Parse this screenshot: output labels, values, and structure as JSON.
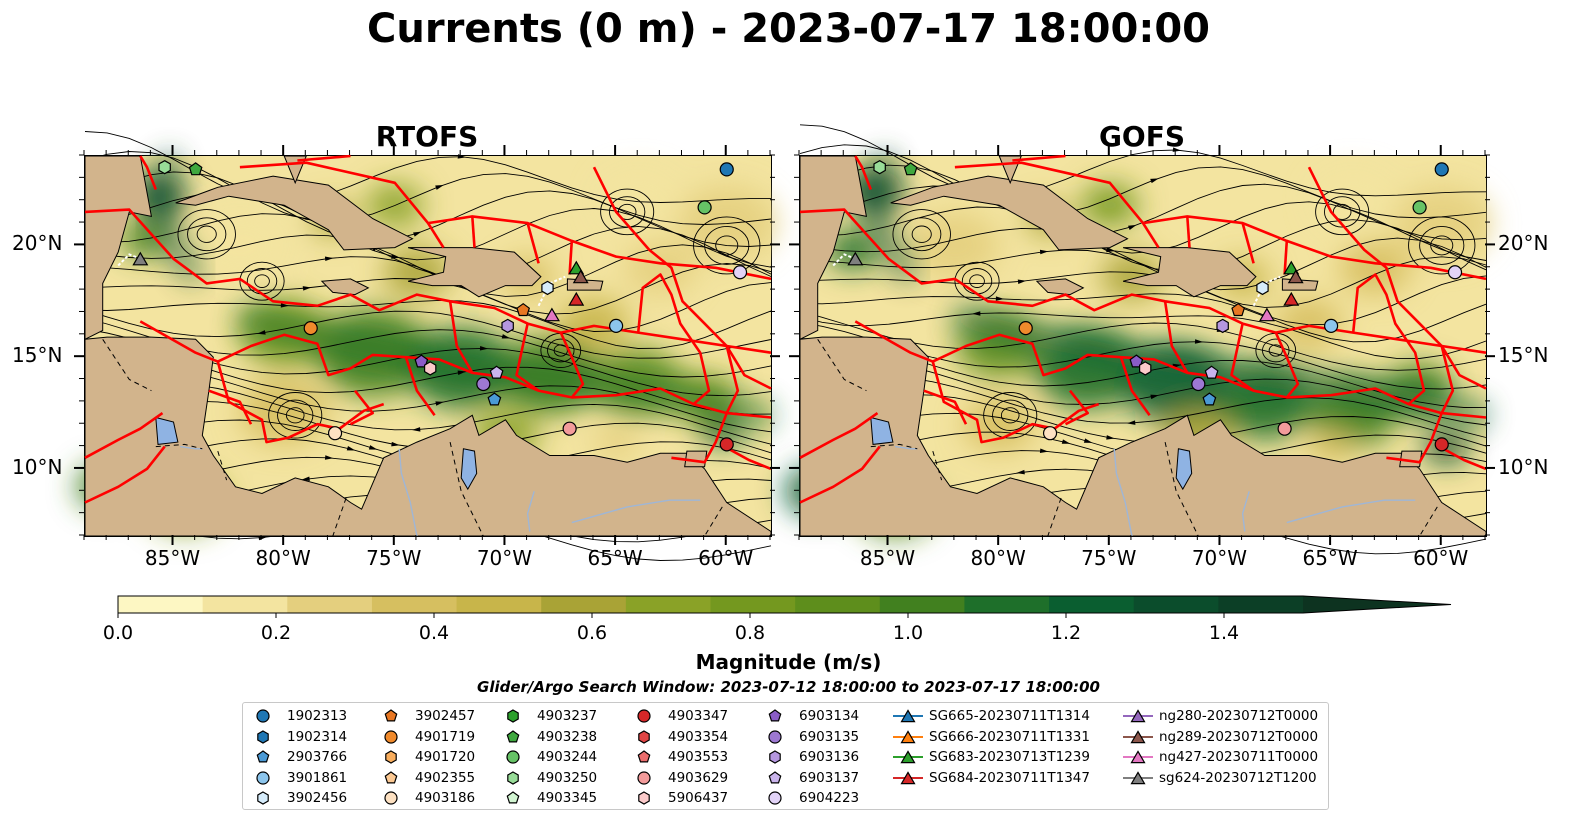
{
  "title": "Currents (0 m) - 2023-07-17 18:00:00",
  "panels": [
    {
      "title": "RTOFS"
    },
    {
      "title": "GOFS"
    }
  ],
  "axes": {
    "lon_ticks": [
      "85°W",
      "80°W",
      "75°W",
      "70°W",
      "65°W",
      "60°W"
    ],
    "lat_ticks": [
      "20°N",
      "15°N",
      "10°N"
    ],
    "lon_range": [
      -89.0,
      -58.0
    ],
    "lat_range": [
      7.0,
      24.0
    ]
  },
  "colorbar": {
    "label": "Magnitude (m/s)",
    "ticks": [
      "0.0",
      "0.2",
      "0.4",
      "0.6",
      "0.8",
      "1.0",
      "1.2",
      "1.4"
    ],
    "range": [
      0.0,
      1.5
    ],
    "extend": "max",
    "colors": [
      "#fdf7c3",
      "#f3e4a0",
      "#e4cf7e",
      "#d6bf60",
      "#c8b54a",
      "#a9a336",
      "#8aa227",
      "#74981f",
      "#5e8e1c",
      "#41801f",
      "#1e6f2a",
      "#0a5e30",
      "#0b4d2c",
      "#0c3f26",
      "#0d3320"
    ]
  },
  "search_window": "Glider/Argo Search Window: 2023-07-12 18:00:00 to 2023-07-17 18:00:00",
  "map_colors": {
    "land": "#d2b48c",
    "eez": "#ff0000",
    "lakes": "#8fb3e3",
    "rivers": "#9fb6d6"
  },
  "legend": [
    {
      "label": "1902313",
      "marker": "circle",
      "color": "#1f77b4"
    },
    {
      "label": "1902314",
      "marker": "hexagon",
      "color": "#1f77b4"
    },
    {
      "label": "2903766",
      "marker": "pentagon",
      "color": "#4a9ad6"
    },
    {
      "label": "3901861",
      "marker": "circle",
      "color": "#8cc5ec"
    },
    {
      "label": "3902456",
      "marker": "hexagon",
      "color": "#d6ecfb"
    },
    {
      "label": "3902457",
      "marker": "pentagon",
      "color": "#e87722"
    },
    {
      "label": "4901719",
      "marker": "circle",
      "color": "#f08a2c"
    },
    {
      "label": "4901720",
      "marker": "hexagon",
      "color": "#f8ad5d"
    },
    {
      "label": "4902355",
      "marker": "pentagon",
      "color": "#fcc993"
    },
    {
      "label": "4903186",
      "marker": "circle",
      "color": "#fde1c2"
    },
    {
      "label": "4903237",
      "marker": "hexagon",
      "color": "#2ca02c"
    },
    {
      "label": "4903238",
      "marker": "pentagon",
      "color": "#3fa83f"
    },
    {
      "label": "4903244",
      "marker": "circle",
      "color": "#66c266"
    },
    {
      "label": "4903250",
      "marker": "hexagon",
      "color": "#98dc98"
    },
    {
      "label": "4903345",
      "marker": "pentagon",
      "color": "#d2f5d2"
    },
    {
      "label": "4903347",
      "marker": "circle",
      "color": "#d62728"
    },
    {
      "label": "4903354",
      "marker": "hexagon",
      "color": "#e04545"
    },
    {
      "label": "4903553",
      "marker": "pentagon",
      "color": "#ea6d6d"
    },
    {
      "label": "4903629",
      "marker": "circle",
      "color": "#f39b9b"
    },
    {
      "label": "5906437",
      "marker": "hexagon",
      "color": "#fbcaca"
    },
    {
      "label": "6903134",
      "marker": "pentagon",
      "color": "#8a5cc7"
    },
    {
      "label": "6903135",
      "marker": "circle",
      "color": "#9d78d2"
    },
    {
      "label": "6903136",
      "marker": "hexagon",
      "color": "#b597e0"
    },
    {
      "label": "6903137",
      "marker": "pentagon",
      "color": "#cab4ec"
    },
    {
      "label": "6904223",
      "marker": "circle",
      "color": "#e2d3f7"
    },
    {
      "label": "SG665-20230711T1314",
      "marker": "triangle",
      "color": "#1f77b4"
    },
    {
      "label": "SG666-20230711T1331",
      "marker": "triangle",
      "color": "#ff7f0e"
    },
    {
      "label": "SG683-20230713T1239",
      "marker": "triangle",
      "color": "#2ca02c"
    },
    {
      "label": "SG684-20230711T1347",
      "marker": "triangle",
      "color": "#d62728"
    },
    {
      "label": "ng280-20230712T0000",
      "marker": "triangle",
      "color": "#9467bd"
    },
    {
      "label": "ng289-20230712T0000",
      "marker": "triangle",
      "color": "#8c564b"
    },
    {
      "label": "ng427-20230711T0000",
      "marker": "triangle",
      "color": "#e377c2"
    },
    {
      "label": "sg624-20230712T1200",
      "marker": "triangle",
      "color": "#7f7f7f"
    }
  ],
  "platforms": [
    {
      "id": "1902313",
      "lon": -60.0,
      "lat": 23.4
    },
    {
      "id": "4903244",
      "lon": -61.0,
      "lat": 21.7
    },
    {
      "id": "6904223",
      "lon": -59.4,
      "lat": 18.8
    },
    {
      "id": "3901861",
      "lon": -65.0,
      "lat": 16.4
    },
    {
      "id": "4903347",
      "lon": -60.0,
      "lat": 11.1
    },
    {
      "id": "4903629",
      "lon": -67.1,
      "lat": 11.8
    },
    {
      "id": "4901719",
      "lon": -78.8,
      "lat": 16.3
    },
    {
      "id": "6903134",
      "lon": -73.8,
      "lat": 14.8
    },
    {
      "id": "5906437",
      "lon": -73.4,
      "lat": 14.5
    },
    {
      "id": "6903135",
      "lon": -71.0,
      "lat": 13.8
    },
    {
      "id": "6903137",
      "lon": -70.4,
      "lat": 14.3
    },
    {
      "id": "2903766",
      "lon": -70.5,
      "lat": 13.1
    },
    {
      "id": "3902457",
      "lon": -69.2,
      "lat": 17.1
    },
    {
      "id": "6903136",
      "lon": -69.9,
      "lat": 16.4
    },
    {
      "id": "3902456",
      "lon": -68.1,
      "lat": 18.1
    },
    {
      "id": "4903186",
      "lon": -77.7,
      "lat": 11.6
    },
    {
      "id": "4903238",
      "lon": -84.0,
      "lat": 23.4
    },
    {
      "id": "4903250",
      "lon": -85.4,
      "lat": 23.5
    }
  ],
  "gliders": [
    {
      "id": "SG683-20230713T1239",
      "lon": -66.8,
      "lat": 19.0
    },
    {
      "id": "ng289-20230712T0000",
      "lon": -66.6,
      "lat": 18.6
    },
    {
      "id": "SG684-20230711T1347",
      "lon": -66.8,
      "lat": 17.6
    },
    {
      "id": "ng427-20230711T0000",
      "lon": -67.9,
      "lat": 16.9
    },
    {
      "id": "sg624-20230712T1200",
      "lon": -86.5,
      "lat": 19.4
    }
  ]
}
